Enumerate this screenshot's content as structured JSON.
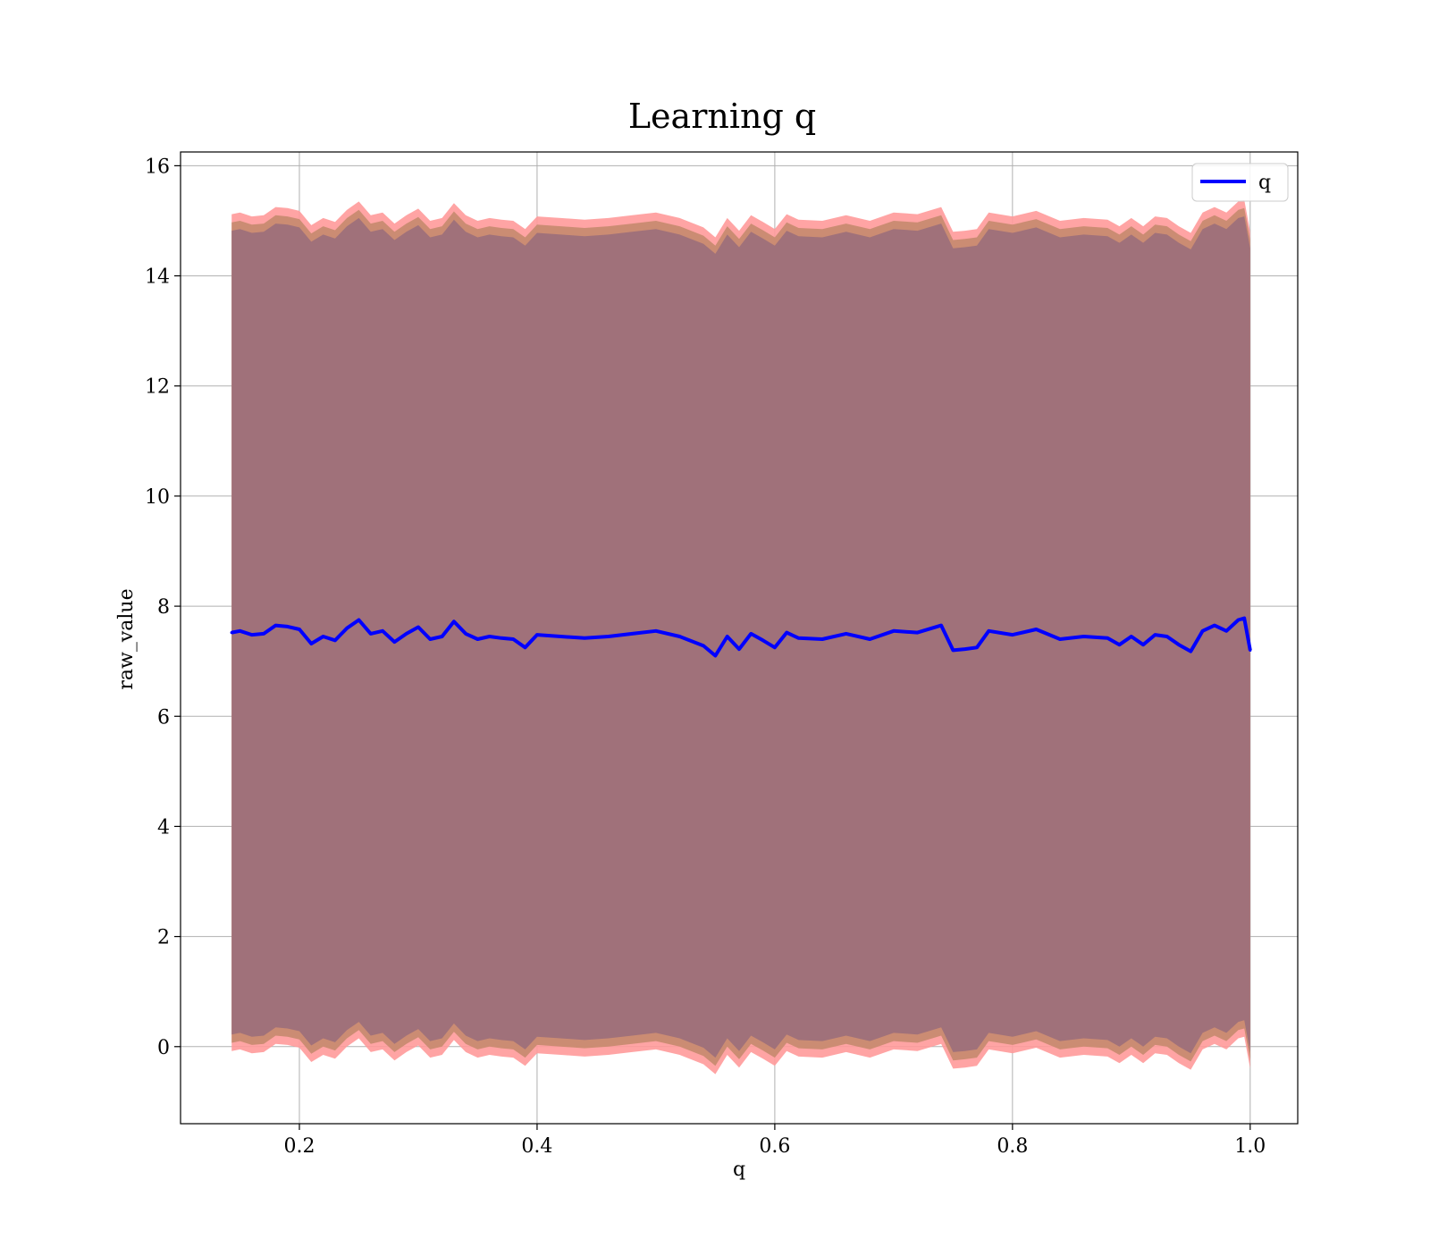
{
  "chart_data": {
    "type": "line",
    "title": "Learning q",
    "xlabel": "q",
    "ylabel": "raw_value",
    "xlim": [
      0.1,
      1.04
    ],
    "ylim": [
      -1.4,
      16.25
    ],
    "x_ticks": [
      "0.2",
      "0.4",
      "0.6",
      "0.8",
      "1.0"
    ],
    "y_ticks": [
      "0",
      "2",
      "4",
      "6",
      "8",
      "10",
      "12",
      "14",
      "16"
    ],
    "grid": true,
    "legend": {
      "position": "top-right",
      "entries": [
        "q"
      ]
    },
    "colors": {
      "line": "#0000ff",
      "band_outer": "#ff9a9a",
      "band_mid": "#c58a6e",
      "band_inner": "#a0717a",
      "grid": "#b0b0b0"
    },
    "series": [
      {
        "name": "q",
        "x": [
          0.143,
          0.15,
          0.16,
          0.17,
          0.18,
          0.19,
          0.2,
          0.21,
          0.22,
          0.23,
          0.24,
          0.25,
          0.26,
          0.27,
          0.28,
          0.29,
          0.3,
          0.31,
          0.32,
          0.33,
          0.34,
          0.35,
          0.36,
          0.37,
          0.38,
          0.39,
          0.4,
          0.42,
          0.44,
          0.46,
          0.48,
          0.5,
          0.52,
          0.54,
          0.55,
          0.56,
          0.57,
          0.58,
          0.59,
          0.6,
          0.61,
          0.62,
          0.64,
          0.66,
          0.68,
          0.7,
          0.72,
          0.74,
          0.75,
          0.76,
          0.77,
          0.78,
          0.8,
          0.82,
          0.84,
          0.86,
          0.88,
          0.89,
          0.9,
          0.91,
          0.92,
          0.93,
          0.94,
          0.95,
          0.96,
          0.97,
          0.98,
          0.99,
          0.995,
          1.0
        ],
        "values": [
          7.52,
          7.55,
          7.48,
          7.5,
          7.65,
          7.63,
          7.58,
          7.32,
          7.45,
          7.38,
          7.6,
          7.75,
          7.5,
          7.55,
          7.35,
          7.5,
          7.62,
          7.4,
          7.45,
          7.72,
          7.5,
          7.4,
          7.45,
          7.42,
          7.4,
          7.25,
          7.48,
          7.45,
          7.42,
          7.45,
          7.5,
          7.55,
          7.45,
          7.28,
          7.1,
          7.45,
          7.22,
          7.5,
          7.38,
          7.25,
          7.52,
          7.42,
          7.4,
          7.5,
          7.4,
          7.55,
          7.52,
          7.65,
          7.2,
          7.22,
          7.25,
          7.55,
          7.48,
          7.58,
          7.4,
          7.45,
          7.42,
          7.3,
          7.45,
          7.3,
          7.48,
          7.45,
          7.3,
          7.18,
          7.55,
          7.65,
          7.55,
          7.75,
          7.78,
          7.2
        ],
        "band_half_widths": [
          7.3,
          7.45,
          7.6
        ]
      }
    ]
  }
}
